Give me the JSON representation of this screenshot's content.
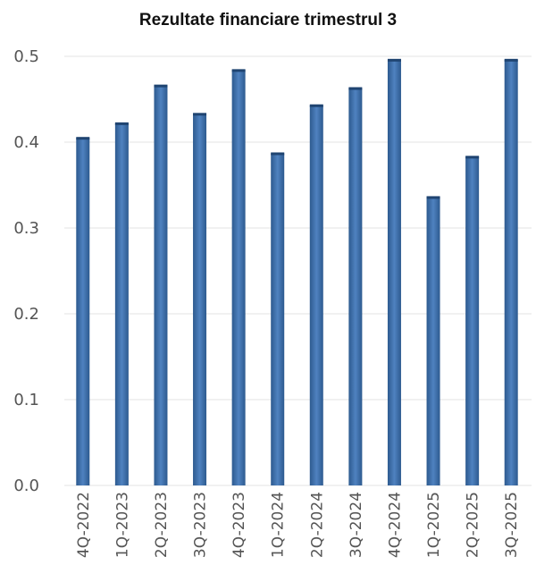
{
  "chart_data": {
    "type": "bar",
    "title": "Rezultate financiare trimestrul 3",
    "xlabel": "",
    "ylabel": "",
    "categories": [
      "4Q-2022",
      "1Q-2023",
      "2Q-2023",
      "3Q-2023",
      "4Q-2023",
      "1Q-2024",
      "2Q-2024",
      "3Q-2024",
      "4Q-2024",
      "1Q-2025",
      "2Q-2025",
      "3Q-2025"
    ],
    "values": [
      0.405,
      0.422,
      0.466,
      0.433,
      0.484,
      0.387,
      0.443,
      0.463,
      0.496,
      0.336,
      0.383,
      0.496
    ],
    "ylim": [
      0,
      0.5
    ],
    "yticks": [
      "0.0",
      "0.1",
      "0.2",
      "0.3",
      "0.4",
      "0.5"
    ],
    "grid": true,
    "bar_colors": {
      "edge": "#2d5a8f",
      "center": "#4f82c0",
      "cap": "#1f4471"
    },
    "grid_color": "#e3e3e3"
  }
}
